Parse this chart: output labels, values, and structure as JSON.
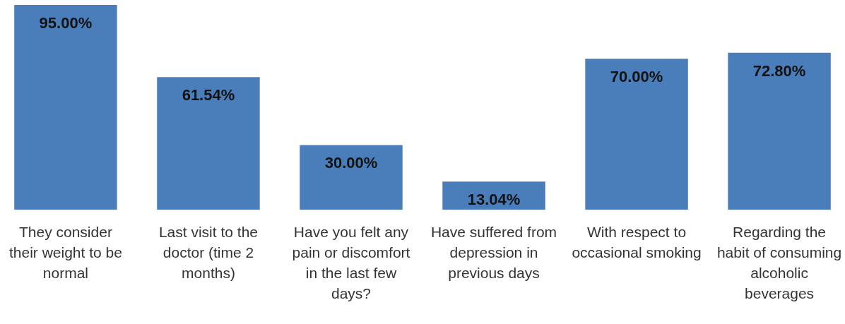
{
  "chart_data": {
    "type": "bar",
    "categories": [
      "They consider their weight to be normal",
      "Last visit to the doctor (time 2 months)",
      "Have you felt any pain or discomfort in the last few days?",
      "Have suffered from depression in previous days",
      "With respect to occasional smoking",
      "Regarding the habit of consuming alcoholic beverages"
    ],
    "values": [
      95,
      61.54,
      30,
      13.04,
      70,
      72.8
    ],
    "value_labels": [
      "95.00%",
      "61.54%",
      "30.00%",
      "13.04%",
      "70.00%",
      "72.80%"
    ],
    "color": "#4a7ebb"
  }
}
